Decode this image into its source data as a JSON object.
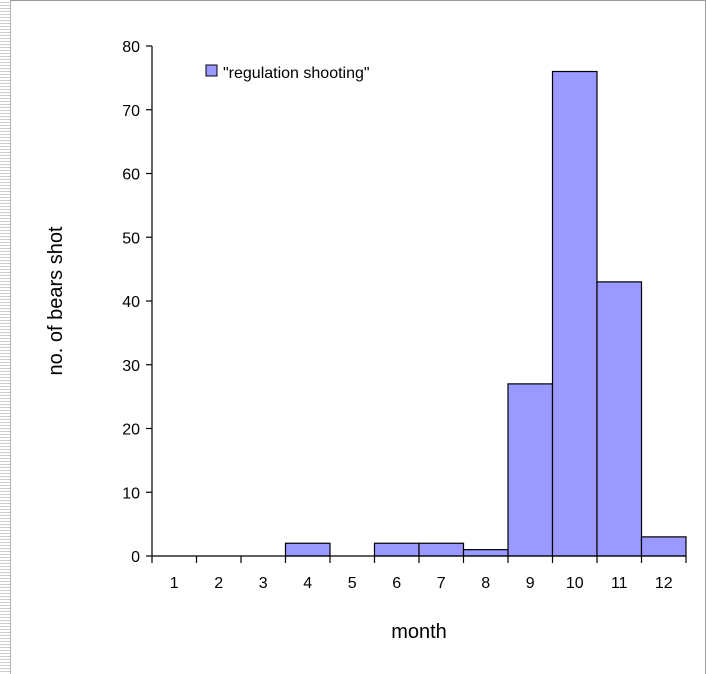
{
  "chart_data": {
    "type": "bar",
    "xlabel": "month",
    "ylabel": "no. of bears shot",
    "categories": [
      "1",
      "2",
      "3",
      "4",
      "5",
      "6",
      "7",
      "8",
      "9",
      "10",
      "11",
      "12"
    ],
    "series": [
      {
        "name": "\"regulation shooting\"",
        "color": "#9999ff",
        "values": [
          0,
          0,
          0,
          2,
          0,
          2,
          2,
          1,
          27,
          76,
          43,
          3
        ]
      }
    ],
    "ylim": [
      0,
      80
    ],
    "yticks": [
      0,
      10,
      20,
      30,
      40,
      50,
      60,
      70,
      80
    ],
    "grid": false,
    "legend_position": "top-left"
  }
}
